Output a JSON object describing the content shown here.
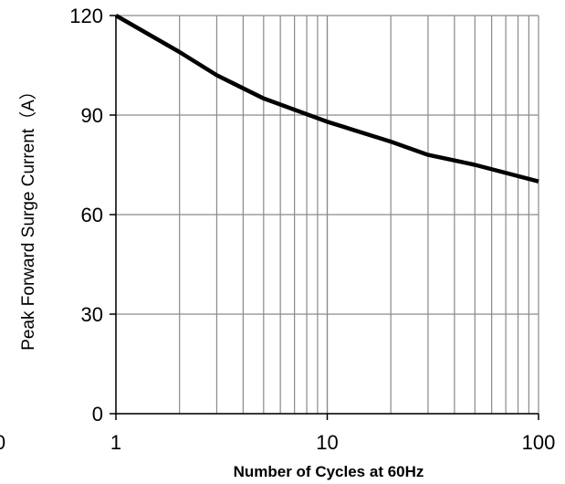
{
  "chart_data": {
    "type": "line",
    "xlabel": "Number of Cycles at 60Hz",
    "ylabel": "Peak Forward Surge Current（A）",
    "x_scale": "log",
    "xlim": [
      1,
      100
    ],
    "ylim": [
      0,
      120
    ],
    "x_ticks": [
      {
        "value": 1,
        "label": "1"
      },
      {
        "value": 10,
        "label": "10"
      },
      {
        "value": 100,
        "label": "100"
      }
    ],
    "y_ticks": [
      {
        "value": 0,
        "label": "0"
      },
      {
        "value": 30,
        "label": "30"
      },
      {
        "value": 60,
        "label": "60"
      },
      {
        "value": 90,
        "label": "90"
      },
      {
        "value": 120,
        "label": "120"
      }
    ],
    "clipped_label": "0",
    "grid": true,
    "series": [
      {
        "color": "#000000",
        "x": [
          1,
          2,
          3,
          5,
          10,
          20,
          30,
          50,
          100
        ],
        "y": [
          120,
          109,
          102,
          95,
          88,
          82,
          78,
          75,
          70
        ]
      }
    ]
  }
}
